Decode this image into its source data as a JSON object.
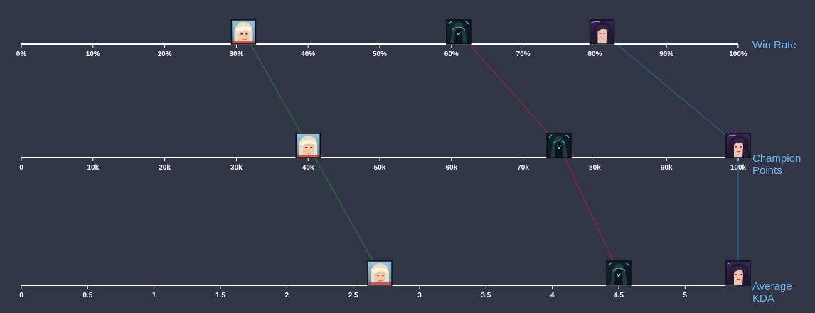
{
  "chart_data": {
    "type": "parallel-coordinates",
    "axes": [
      {
        "title_lines": [
          "Win Rate"
        ],
        "min": 0,
        "max": 100,
        "ticks": [
          0,
          10,
          20,
          30,
          40,
          50,
          60,
          70,
          80,
          90,
          100
        ],
        "tick_labels": [
          "0%",
          "10%",
          "20%",
          "30%",
          "40%",
          "50%",
          "60%",
          "70%",
          "80%",
          "90%",
          "100%"
        ]
      },
      {
        "title_lines": [
          "Champion",
          "Points"
        ],
        "min": 0,
        "max": 100000,
        "ticks": [
          0,
          10000,
          20000,
          30000,
          40000,
          50000,
          60000,
          70000,
          80000,
          90000,
          100000
        ],
        "tick_labels": [
          "0",
          "10k",
          "20k",
          "30k",
          "40k",
          "50k",
          "60k",
          "70k",
          "80k",
          "90k",
          "100k"
        ]
      },
      {
        "title_lines": [
          "Average",
          "KDA"
        ],
        "min": 0,
        "max": 5.4,
        "ticks": [
          0,
          0.5,
          1,
          1.5,
          2,
          2.5,
          3,
          3.5,
          4,
          4.5,
          5
        ],
        "tick_labels": [
          "0",
          "0.5",
          "1",
          "1.5",
          "2",
          "2.5",
          "3",
          "3.5",
          "4",
          "4.5",
          "5"
        ]
      }
    ],
    "series": [
      {
        "icon": "blonde-champion-portrait-icon",
        "color": "#2e5c3c",
        "values": [
          31,
          40000,
          2.7
        ]
      },
      {
        "icon": "dark-hooded-champion-portrait-icon",
        "color": "#6e2f3b",
        "values": [
          61,
          75000,
          4.5
        ]
      },
      {
        "icon": "purple-haired-champion-portrait-icon",
        "color": "#2c5374",
        "values": [
          81,
          100000,
          5.4
        ]
      }
    ],
    "colors": {
      "background": "#303645",
      "axis": "#ffffff",
      "axis_title": "#6fb3ee"
    }
  }
}
